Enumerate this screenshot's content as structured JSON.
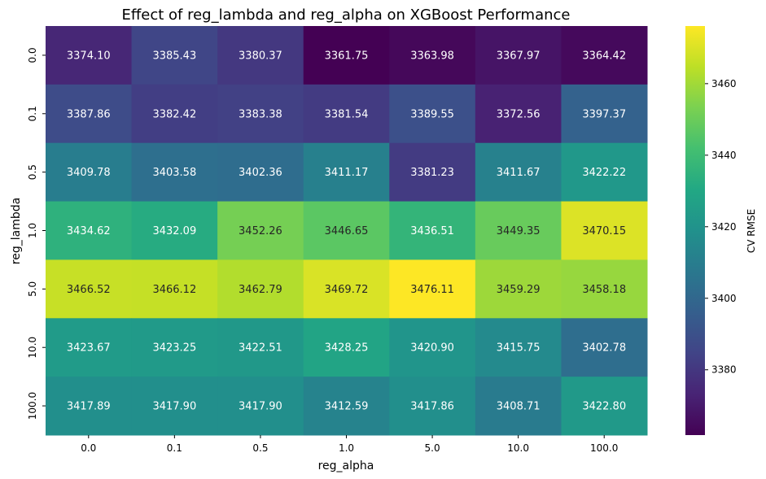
{
  "chart_data": {
    "type": "heatmap",
    "title": "Effect of reg_lambda and reg_alpha on XGBoost Performance",
    "xlabel": "reg_alpha",
    "ylabel": "reg_lambda",
    "x_categories": [
      "0.0",
      "0.1",
      "0.5",
      "1.0",
      "5.0",
      "10.0",
      "100.0"
    ],
    "y_categories": [
      "0.0",
      "0.1",
      "0.5",
      "1.0",
      "5.0",
      "10.0",
      "100.0"
    ],
    "values": [
      [
        3374.1,
        3385.43,
        3380.37,
        3361.75,
        3363.98,
        3367.97,
        3364.42
      ],
      [
        3387.86,
        3382.42,
        3383.38,
        3381.54,
        3389.55,
        3372.56,
        3397.37
      ],
      [
        3409.78,
        3403.58,
        3402.36,
        3411.17,
        3381.23,
        3411.67,
        3422.22
      ],
      [
        3434.62,
        3432.09,
        3452.26,
        3446.65,
        3436.51,
        3449.35,
        3470.15
      ],
      [
        3466.52,
        3466.12,
        3462.79,
        3469.72,
        3476.11,
        3459.29,
        3458.18
      ],
      [
        3423.67,
        3423.25,
        3422.51,
        3428.25,
        3420.9,
        3415.75,
        3402.78
      ],
      [
        3417.89,
        3417.9,
        3417.9,
        3412.59,
        3417.86,
        3408.71,
        3422.8
      ]
    ],
    "colorbar": {
      "label": "CV RMSE",
      "ticks": [
        3380,
        3400,
        3420,
        3440,
        3460
      ],
      "colormap": "viridis",
      "range": [
        3361.75,
        3476.11
      ]
    },
    "annotation_format": "2 decimals"
  }
}
